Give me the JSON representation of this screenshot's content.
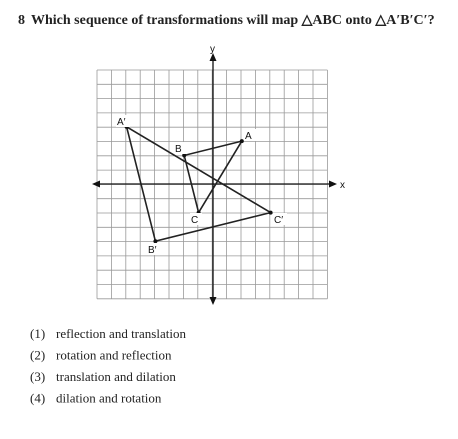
{
  "question": {
    "number": "8",
    "text": "Which sequence of transformations will map △ABC onto △A′B′C′?"
  },
  "diagram": {
    "axis_labels": {
      "x": "x",
      "y": "y"
    },
    "vertex_labels": {
      "A": "A",
      "B": "B",
      "C": "C",
      "A_prime": "A′",
      "B_prime": "B′",
      "C_prime": "C′"
    }
  },
  "choices": [
    {
      "number": "(1)",
      "text": "reflection and translation"
    },
    {
      "number": "(2)",
      "text": "rotation and reflection"
    },
    {
      "number": "(3)",
      "text": "translation and dilation"
    },
    {
      "number": "(4)",
      "text": "dilation and rotation"
    }
  ]
}
